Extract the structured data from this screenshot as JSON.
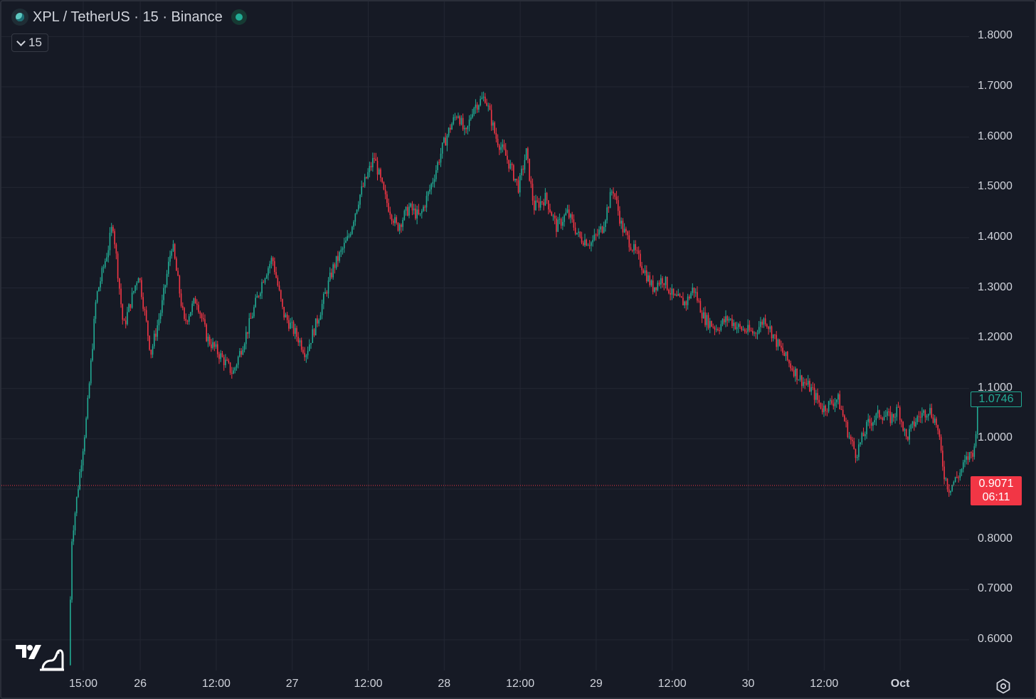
{
  "header": {
    "title": "XPL / TetherUS · 15 · Binance",
    "interval_label": "15"
  },
  "icons": {
    "symbol_logo": "plasma-coin-icon",
    "status": "market-open-dot-icon",
    "interval_toggle": "chevron-down-icon",
    "brand": "tradingview-logo-icon",
    "settings": "settings-gear-icon"
  },
  "colors": {
    "up": "#22ab94",
    "down": "#f23645",
    "background": "#161a25",
    "grid": "#232733",
    "text": "#d1d4dc"
  },
  "chart_data": {
    "type": "candlestick",
    "symbol": "XPL / TetherUS",
    "interval": "15",
    "exchange": "Binance",
    "y_axis": {
      "ticks": [
        "1.8000",
        "1.7000",
        "1.6000",
        "1.5000",
        "1.4000",
        "1.3000",
        "1.2000",
        "1.1000",
        "1.0000",
        "0.8000",
        "0.7000",
        "0.6000"
      ],
      "range": [
        0.54,
        1.85
      ]
    },
    "x_axis": {
      "ticks": [
        "15:00",
        "26",
        "12:00",
        "27",
        "12:00",
        "28",
        "12:00",
        "29",
        "12:00",
        "30",
        "12:00",
        "Oct"
      ],
      "range_days": [
        25.5,
        30.98
      ]
    },
    "last_price": {
      "value": "1.0746",
      "color": "#22ab94"
    },
    "low_line": {
      "value": "0.9071",
      "countdown": "06:11",
      "color": "#f23645"
    },
    "anchors": [
      [
        25.54,
        0.55
      ],
      [
        25.56,
        0.8
      ],
      [
        25.6,
        0.9
      ],
      [
        25.66,
        1.05
      ],
      [
        25.72,
        1.28
      ],
      [
        25.8,
        1.38
      ],
      [
        25.83,
        1.43
      ],
      [
        25.9,
        1.22
      ],
      [
        26.0,
        1.33
      ],
      [
        26.08,
        1.17
      ],
      [
        26.15,
        1.26
      ],
      [
        26.22,
        1.39
      ],
      [
        26.3,
        1.23
      ],
      [
        26.38,
        1.28
      ],
      [
        26.45,
        1.2
      ],
      [
        26.55,
        1.16
      ],
      [
        26.62,
        1.13
      ],
      [
        26.72,
        1.22
      ],
      [
        26.82,
        1.32
      ],
      [
        26.88,
        1.36
      ],
      [
        26.95,
        1.25
      ],
      [
        27.05,
        1.2
      ],
      [
        27.1,
        1.17
      ],
      [
        27.18,
        1.24
      ],
      [
        27.28,
        1.34
      ],
      [
        27.38,
        1.4
      ],
      [
        27.45,
        1.48
      ],
      [
        27.55,
        1.56
      ],
      [
        27.62,
        1.48
      ],
      [
        27.7,
        1.42
      ],
      [
        27.78,
        1.46
      ],
      [
        27.85,
        1.44
      ],
      [
        27.92,
        1.5
      ],
      [
        28.0,
        1.58
      ],
      [
        28.05,
        1.62
      ],
      [
        28.1,
        1.65
      ],
      [
        28.15,
        1.6
      ],
      [
        28.2,
        1.66
      ],
      [
        28.28,
        1.68
      ],
      [
        28.35,
        1.6
      ],
      [
        28.42,
        1.56
      ],
      [
        28.5,
        1.5
      ],
      [
        28.55,
        1.57
      ],
      [
        28.6,
        1.46
      ],
      [
        28.68,
        1.48
      ],
      [
        28.75,
        1.42
      ],
      [
        28.82,
        1.45
      ],
      [
        28.9,
        1.4
      ],
      [
        28.98,
        1.39
      ],
      [
        29.05,
        1.42
      ],
      [
        29.12,
        1.5
      ],
      [
        29.18,
        1.42
      ],
      [
        29.25,
        1.38
      ],
      [
        29.32,
        1.34
      ],
      [
        29.38,
        1.3
      ],
      [
        29.45,
        1.32
      ],
      [
        29.52,
        1.28
      ],
      [
        29.6,
        1.27
      ],
      [
        29.65,
        1.3
      ],
      [
        29.72,
        1.24
      ],
      [
        29.8,
        1.22
      ],
      [
        29.88,
        1.24
      ],
      [
        29.95,
        1.22
      ],
      [
        30.05,
        1.21
      ],
      [
        30.12,
        1.24
      ],
      [
        30.2,
        1.19
      ],
      [
        30.28,
        1.15
      ],
      [
        30.35,
        1.12
      ],
      [
        30.42,
        1.1
      ],
      [
        30.5,
        1.06
      ],
      [
        30.6,
        1.08
      ],
      [
        30.68,
        1.0
      ],
      [
        30.72,
        0.97
      ],
      [
        30.8,
        1.03
      ],
      [
        30.88,
        1.05
      ],
      [
        30.95,
        1.04
      ],
      [
        31.0,
        1.06
      ],
      [
        31.05,
        1.0
      ],
      [
        31.12,
        1.04
      ],
      [
        31.2,
        1.06
      ],
      [
        31.25,
        1.03
      ],
      [
        31.3,
        0.93
      ],
      [
        31.33,
        0.9
      ],
      [
        31.4,
        0.93
      ],
      [
        31.45,
        0.96
      ],
      [
        31.5,
        0.98
      ],
      [
        31.52,
        1.075
      ]
    ]
  }
}
